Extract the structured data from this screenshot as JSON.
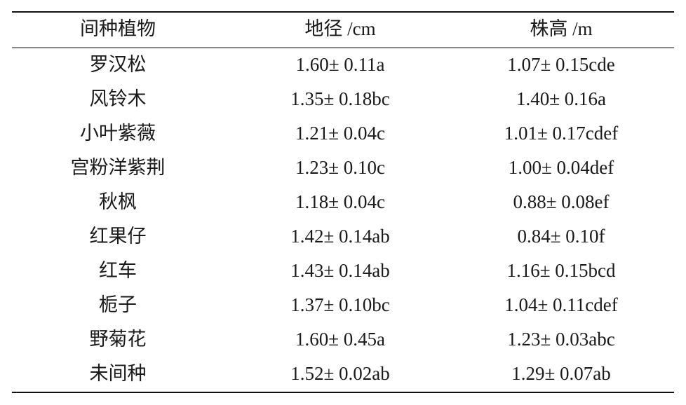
{
  "table": {
    "header": [
      "间种植物",
      "地径 /cm",
      "株高 /m"
    ],
    "rows": [
      [
        "罗汉松",
        "1.60± 0.11a",
        "1.07± 0.15cde"
      ],
      [
        "风铃木",
        "1.35± 0.18bc",
        "1.40± 0.16a"
      ],
      [
        "小叶紫薇",
        "1.21± 0.04c",
        "1.01± 0.17cdef"
      ],
      [
        "宫粉洋紫荆",
        "1.23± 0.10c",
        "1.00± 0.04def"
      ],
      [
        "秋枫",
        "1.18± 0.04c",
        "0.88± 0.08ef"
      ],
      [
        "红果仔",
        "1.42± 0.14ab",
        "0.84± 0.10f"
      ],
      [
        "红车",
        "1.43± 0.14ab",
        "1.16± 0.15bcd"
      ],
      [
        "栀子",
        "1.37± 0.10bc",
        "1.04± 0.11cdef"
      ],
      [
        "野菊花",
        "1.60± 0.45a",
        "1.23± 0.03abc"
      ],
      [
        "未间种",
        "1.52± 0.02ab",
        "1.29± 0.07ab"
      ]
    ]
  }
}
